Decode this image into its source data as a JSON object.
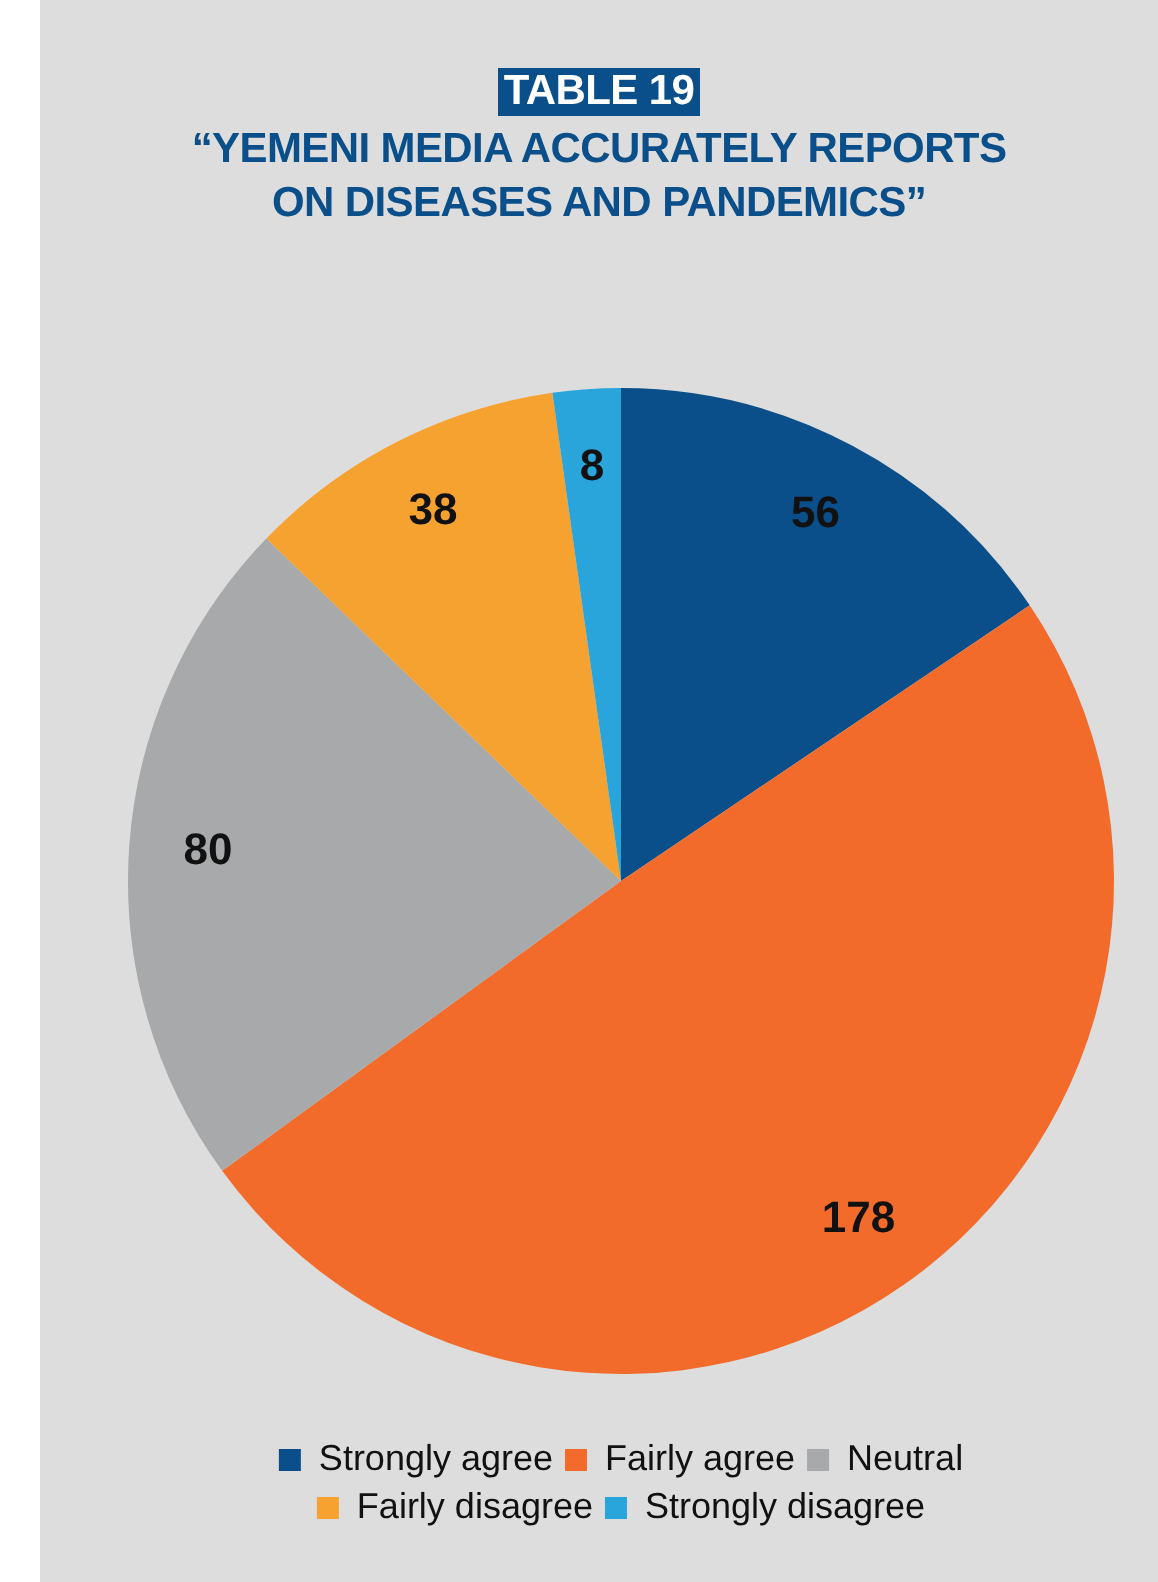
{
  "chart_data": {
    "type": "pie",
    "title": "TABLE 19",
    "subtitle": "“YEMENI MEDIA ACCURATELY REPORTS ON DISEASES AND PANDEMICS”",
    "categories": [
      "Strongly agree",
      "Fairly agree",
      "Neutral",
      "Fairly disagree",
      "Strongly disagree"
    ],
    "values": [
      56,
      178,
      80,
      38,
      8
    ],
    "colors": [
      "#0b4f8a",
      "#f26b2a",
      "#a7a9ab",
      "#f6a230",
      "#2aa5dc"
    ],
    "data_labels": true,
    "legend": "bottom"
  }
}
